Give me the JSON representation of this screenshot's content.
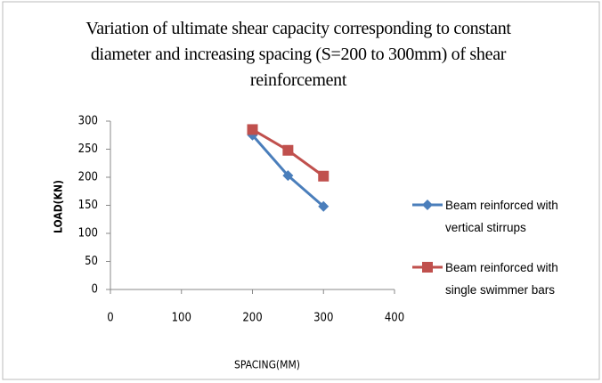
{
  "chart_data": {
    "type": "line",
    "title": "Variation of ultimate shear capacity corresponding to constant diameter and increasing spacing (S=200 to 300mm) of shear reinforcement",
    "x_label": "SPACING(MM)",
    "y_label": "LOAD(KN)",
    "x": [
      200,
      250,
      300
    ],
    "series": [
      {
        "name": "Beam reinforced with vertical stirrups",
        "color": "#4a7ebb",
        "marker": "diamond",
        "values": [
          275,
          203,
          148
        ]
      },
      {
        "name": "Beam reinforced with single swimmer bars",
        "color": "#c0504d",
        "marker": "square",
        "values": [
          285,
          248,
          202
        ]
      }
    ],
    "xlim": [
      0,
      400
    ],
    "xticks": [
      0,
      100,
      200,
      300,
      400
    ],
    "ylim": [
      0,
      300
    ],
    "yticks": [
      0,
      50,
      100,
      150,
      200,
      250,
      300
    ],
    "grid": false,
    "legend": "right"
  }
}
